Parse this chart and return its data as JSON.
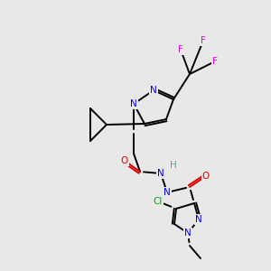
{
  "background_color": "#e8e8e8",
  "atom_colors": {
    "C": "#000000",
    "N": "#0000ee",
    "O": "#dd0000",
    "F": "#ee00ee",
    "Cl": "#00aa00",
    "H": "#5f9ea0"
  },
  "figsize": [
    3.0,
    3.0
  ],
  "dpi": 100,
  "lw": 1.4,
  "fs": 7.5
}
